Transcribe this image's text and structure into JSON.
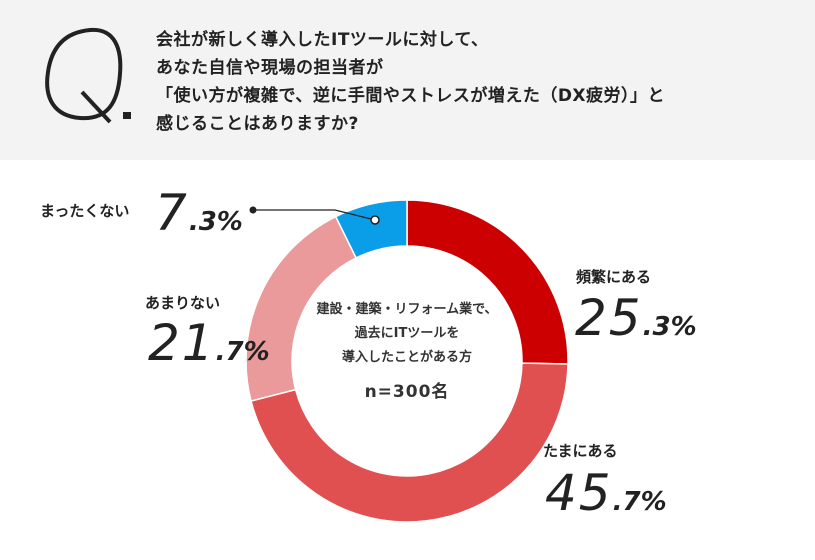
{
  "question": {
    "marker": "Q.",
    "lines": [
      "会社が新しく導入したITツールに対して、",
      "あなた自信や現場の担当者が",
      "「使い方が複雑で、逆に手間やストレスが増えた（DX疲労）」と",
      "感じることはありますか?"
    ]
  },
  "center": {
    "lines": [
      "建設・建築・リフォーム業で、",
      "過去にITツールを",
      "導入したことがある方"
    ],
    "n": "n=300名"
  },
  "segments": [
    {
      "label": "頻繁にある",
      "int": "25",
      "dec": ".3%",
      "color": "#cc0000"
    },
    {
      "label": "たまにある",
      "int": "45",
      "dec": ".7%",
      "color": "#e05050"
    },
    {
      "label": "あまりない",
      "int": "21",
      "dec": ".7%",
      "color": "#ea9a9a"
    },
    {
      "label": "まったくない",
      "int": "7",
      "dec": ".3%",
      "color": "#0b9ee8"
    }
  ],
  "chart_data": {
    "type": "pie",
    "title": "会社が新しく導入したITツールに対して、あなた自信や現場の担当者が「使い方が複雑で、逆に手間やストレスが増えた（DX疲労）」と感じることはありますか?",
    "subtitle": "建設・建築・リフォーム業で、過去にITツールを導入したことがある方 n=300名",
    "categories": [
      "頻繁にある",
      "たまにある",
      "あまりない",
      "まったくない"
    ],
    "values": [
      25.3,
      45.7,
      21.7,
      7.3
    ],
    "unit": "%",
    "colors": [
      "#cc0000",
      "#e05050",
      "#ea9a9a",
      "#0b9ee8"
    ],
    "donut": true,
    "legend": "direct labels"
  }
}
